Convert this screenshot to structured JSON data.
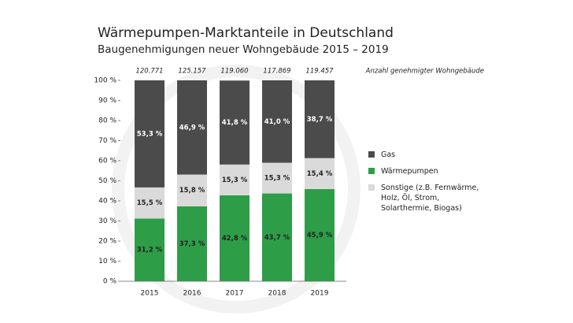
{
  "chart_data": {
    "type": "stacked_bar",
    "title": "Wärmepumpen-Marktanteile in Deutschland",
    "subtitle": "Baugenehmigungen neuer Wohngebäude 2015 – 2019",
    "categories": [
      "2015",
      "2016",
      "2017",
      "2018",
      "2019"
    ],
    "series": [
      {
        "name": "Gas",
        "color": "#4b4b4b",
        "values": [
          53.3,
          46.9,
          41.8,
          41.0,
          38.7
        ],
        "value_labels": [
          "53,3 %",
          "46,9 %",
          "41,8 %",
          "41,0 %",
          "38,7 %"
        ]
      },
      {
        "name": "Wärmepumpen",
        "color": "#2e9d48",
        "values": [
          31.2,
          37.3,
          42.8,
          43.7,
          45.9
        ],
        "value_labels": [
          "31,2 %",
          "37,3 %",
          "42,8 %",
          "43,7 %",
          "45,9 %"
        ]
      },
      {
        "name": "Sonstige (z.B. Fernwärme, Holz, Öl, Strom, Solarthermie, Biogas)",
        "color": "#dadada",
        "values": [
          15.5,
          15.8,
          15.3,
          15.3,
          15.4
        ],
        "value_labels": [
          "15,5 %",
          "15,8 %",
          "15,3 %",
          "15,3 %",
          "15,4 %"
        ]
      }
    ],
    "totals": {
      "name": "Anzahl genehmigter Wohngebäude",
      "values": [
        120771,
        125157,
        119060,
        117869,
        119457
      ],
      "value_labels": [
        "120.771",
        "125.157",
        "119.060",
        "117.869",
        "119.457"
      ]
    },
    "ylim": [
      0,
      100
    ],
    "yticks": [
      {
        "value": 0,
        "label": "0 %"
      },
      {
        "value": 10,
        "label": "10 %"
      },
      {
        "value": 20,
        "label": "20 %"
      },
      {
        "value": 30,
        "label": "30 %"
      },
      {
        "value": 40,
        "label": "40 %"
      },
      {
        "value": 50,
        "label": "50 %"
      },
      {
        "value": 60,
        "label": "60 %"
      },
      {
        "value": 70,
        "label": "70 %"
      },
      {
        "value": 80,
        "label": "80 %"
      },
      {
        "value": 90,
        "label": "90 %"
      },
      {
        "value": 100,
        "label": "100 %"
      }
    ],
    "grid": false
  }
}
